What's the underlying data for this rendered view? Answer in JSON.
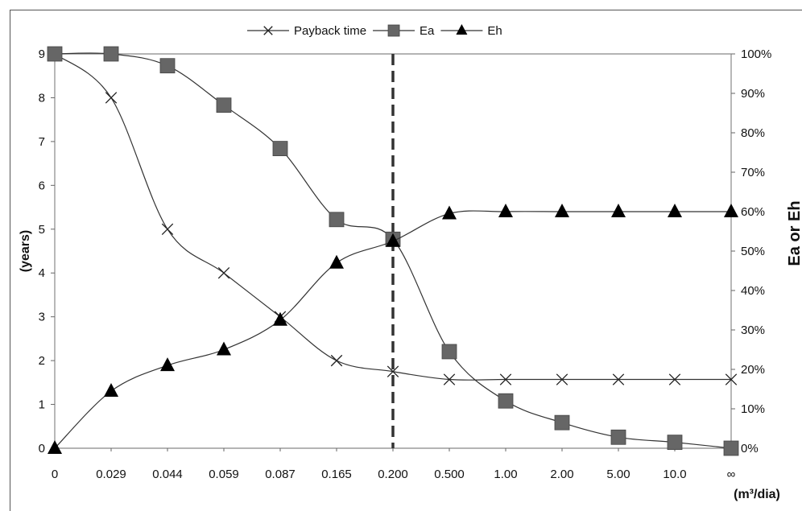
{
  "chart_data": {
    "type": "line",
    "categories": [
      "0",
      "0.029",
      "0.044",
      "0.059",
      "0.087",
      "0.165",
      "0.200",
      "0.500",
      "1.00",
      "2.00",
      "5.00",
      "10.0",
      "∞"
    ],
    "xlabel": "(m³/dia)",
    "ylabel_left": "(years)",
    "ylabel_right": "Ea or Eh",
    "ylim_left": [
      0,
      9
    ],
    "ylim_right": [
      0,
      1
    ],
    "yticks_left": [
      "0",
      "1",
      "2",
      "3",
      "4",
      "5",
      "6",
      "7",
      "8",
      "9"
    ],
    "yticks_right": [
      "0%",
      "10%",
      "20%",
      "30%",
      "40%",
      "50%",
      "60%",
      "70%",
      "80%",
      "90%",
      "100%"
    ],
    "grid": false,
    "legend_position": "top-center",
    "reference_line": {
      "category": "0.200",
      "style": "dashed"
    },
    "series": [
      {
        "name": "Payback time",
        "axis": "left",
        "marker": "x",
        "values": [
          9.0,
          8.0,
          5.0,
          4.0,
          3.0,
          2.0,
          1.75,
          1.57,
          1.57,
          1.57,
          1.57,
          1.57,
          1.57
        ]
      },
      {
        "name": "Ea",
        "axis": "right",
        "marker": "square",
        "values": [
          1.0,
          1.0,
          0.97,
          0.87,
          0.76,
          0.58,
          0.53,
          0.245,
          0.12,
          0.065,
          0.028,
          0.015,
          0.0
        ]
      },
      {
        "name": "Eh",
        "axis": "right",
        "marker": "triangle",
        "values": [
          0.0,
          0.145,
          0.21,
          0.25,
          0.325,
          0.47,
          0.525,
          0.595,
          0.6,
          0.6,
          0.6,
          0.6,
          0.6
        ]
      }
    ]
  }
}
